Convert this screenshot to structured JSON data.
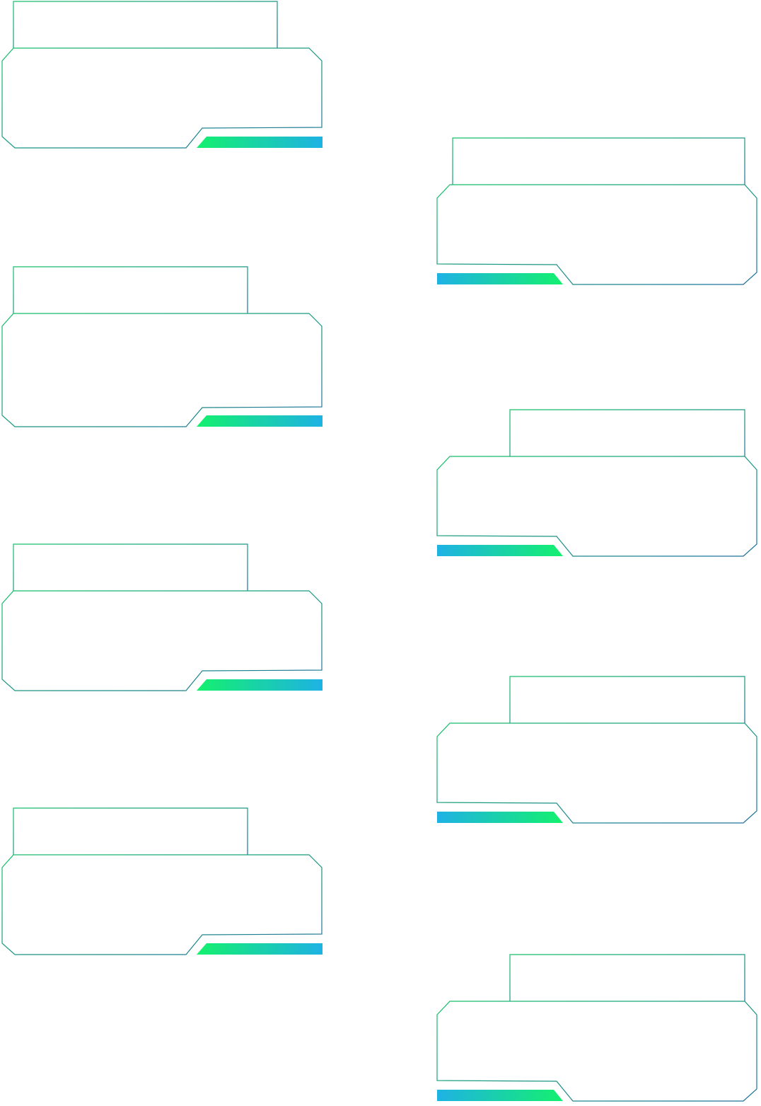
{
  "theme": {
    "stroke_start": "#16c06a",
    "stroke_end": "#1f6f9a",
    "accent_green": "#14f06e",
    "accent_blue": "#1eb2e4"
  },
  "panels": [
    {
      "column": "left",
      "tab_title": "",
      "body_text": ""
    },
    {
      "column": "left",
      "tab_title": "",
      "body_text": ""
    },
    {
      "column": "left",
      "tab_title": "",
      "body_text": ""
    },
    {
      "column": "left",
      "tab_title": "",
      "body_text": ""
    },
    {
      "column": "right",
      "tab_title": "",
      "body_text": ""
    },
    {
      "column": "right",
      "tab_title": "",
      "body_text": ""
    },
    {
      "column": "right",
      "tab_title": "",
      "body_text": ""
    },
    {
      "column": "right",
      "tab_title": "",
      "body_text": ""
    }
  ]
}
